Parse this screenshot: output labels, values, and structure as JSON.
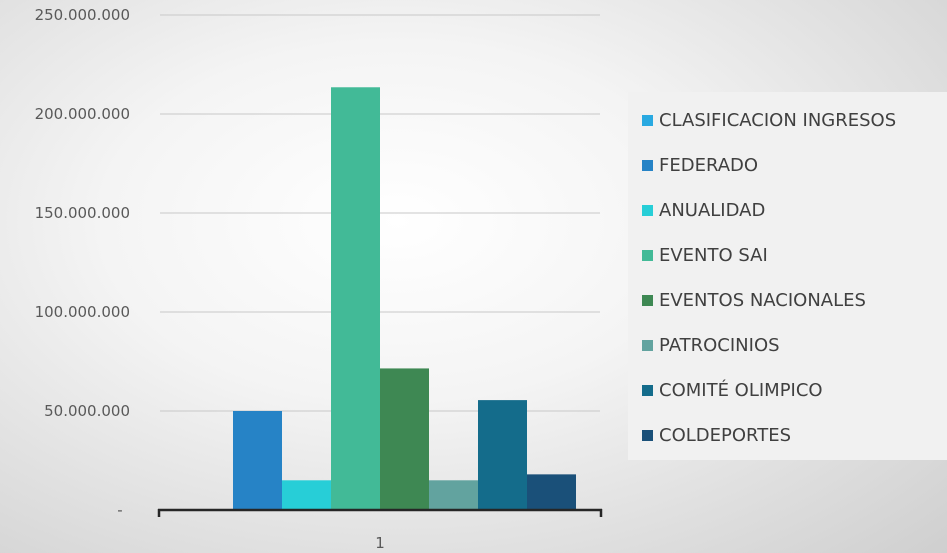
{
  "chart_data": {
    "type": "bar",
    "categories": [
      "1"
    ],
    "series": [
      {
        "name": "CLASIFICACION INGRESOS",
        "values": [
          0
        ],
        "color": "#29a9e1"
      },
      {
        "name": "FEDERADO",
        "values": [
          50000000
        ],
        "color": "#2683c6"
      },
      {
        "name": "ANUALIDAD",
        "values": [
          15000000
        ],
        "color": "#27ced7"
      },
      {
        "name": "EVENTO SAI",
        "values": [
          213500000
        ],
        "color": "#42ba97"
      },
      {
        "name": "EVENTOS NACIONALES",
        "values": [
          71500000
        ],
        "color": "#3e8853"
      },
      {
        "name": "PATROCINIOS",
        "values": [
          15000000
        ],
        "color": "#62a39f"
      },
      {
        "name": "COMITÉ OLIMPICO",
        "values": [
          55500000
        ],
        "color": "#146c8b"
      },
      {
        "name": "COLDEPORTES",
        "values": [
          18000000
        ],
        "color": "#1a5079"
      }
    ],
    "y_ticks": [
      "-",
      "50.000.000",
      "100.000.000",
      "150.000.000",
      "200.000.000",
      "250.000.000"
    ],
    "ylim": [
      0,
      250000000
    ],
    "grid": true,
    "legend_position": "right"
  }
}
